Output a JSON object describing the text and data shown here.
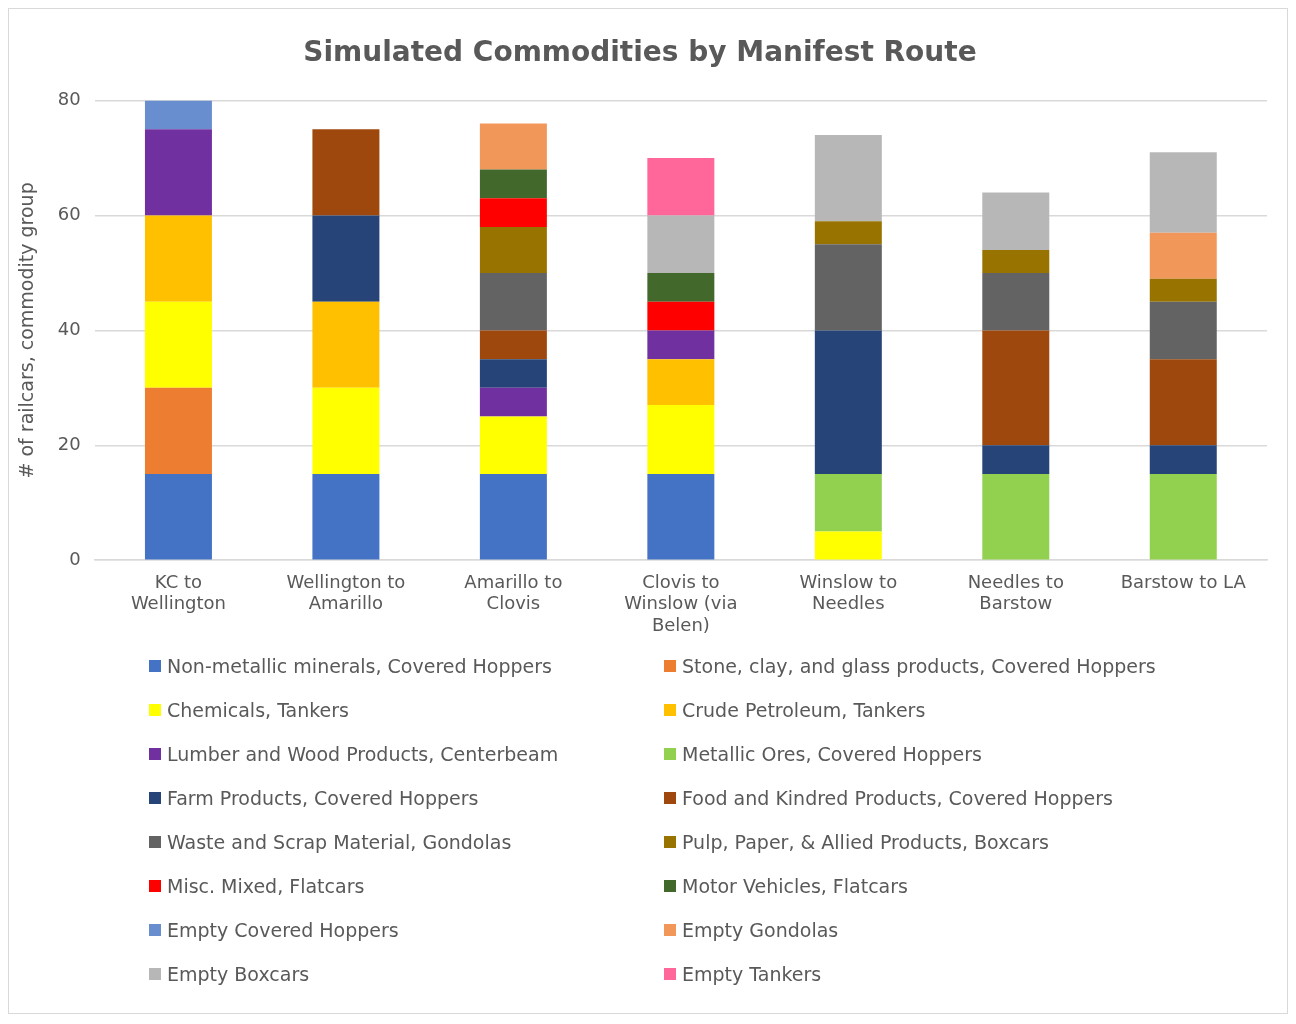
{
  "chart_data": {
    "type": "bar",
    "stacked": true,
    "title": "Simulated Commodities by Manifest Route",
    "ylabel": "# of railcars, commodity group",
    "categories": [
      "KC to Wellington",
      "Wellington to Amarillo",
      "Amarillo to Clovis",
      "Clovis to Winslow (via Belen)",
      "Winslow to Needles",
      "Needles to Barstow",
      "Barstow to LA"
    ],
    "ylim": [
      0,
      80
    ],
    "yticks": [
      0,
      20,
      40,
      60,
      80
    ],
    "grid": "y",
    "legend": "bottom",
    "series": [
      {
        "name": "Non-metallic minerals, Covered Hoppers",
        "color": "#4472c4",
        "values": [
          15,
          15,
          15,
          15,
          null,
          null,
          null
        ]
      },
      {
        "name": "Stone, clay, and glass products, Covered Hoppers",
        "color": "#ed7d31",
        "values": [
          15,
          null,
          null,
          null,
          null,
          null,
          null
        ]
      },
      {
        "name": "Chemicals, Tankers",
        "color": "#ffff00",
        "values": [
          15,
          15,
          10,
          12,
          5,
          null,
          null
        ]
      },
      {
        "name": "Crude Petroleum, Tankers",
        "color": "#ffc000",
        "values": [
          15,
          15,
          null,
          8,
          null,
          null,
          null
        ]
      },
      {
        "name": "Lumber and Wood Products, Centerbeam",
        "color": "#7030a0",
        "values": [
          15,
          null,
          5,
          5,
          null,
          null,
          null
        ]
      },
      {
        "name": "Metallic Ores, Covered Hoppers",
        "color": "#92d050",
        "values": [
          null,
          null,
          null,
          null,
          10,
          15,
          15
        ]
      },
      {
        "name": "Farm Products, Covered Hoppers",
        "color": "#264478",
        "values": [
          null,
          15,
          5,
          null,
          25,
          5,
          5
        ]
      },
      {
        "name": "Food and Kindred Products, Covered Hoppers",
        "color": "#9e480e",
        "values": [
          null,
          15,
          5,
          null,
          null,
          20,
          15
        ]
      },
      {
        "name": "Waste and Scrap Material, Gondolas",
        "color": "#636363",
        "values": [
          null,
          null,
          10,
          null,
          15,
          10,
          10
        ]
      },
      {
        "name": "Pulp, Paper, & Allied Products, Boxcars",
        "color": "#997300",
        "values": [
          null,
          null,
          8,
          null,
          4,
          4,
          4
        ]
      },
      {
        "name": "Misc. Mixed, Flatcars",
        "color": "#ff0000",
        "values": [
          null,
          null,
          5,
          5,
          null,
          null,
          null
        ]
      },
      {
        "name": "Motor Vehicles, Flatcars",
        "color": "#43682b",
        "values": [
          null,
          null,
          5,
          5,
          null,
          null,
          null
        ]
      },
      {
        "name": "Empty Covered Hoppers",
        "color": "#698ed0",
        "values": [
          5,
          null,
          null,
          null,
          null,
          null,
          null
        ]
      },
      {
        "name": "Empty Gondolas",
        "color": "#f1975a",
        "values": [
          null,
          null,
          8,
          null,
          null,
          null,
          8
        ]
      },
      {
        "name": "Empty Boxcars",
        "color": "#b7b7b7",
        "values": [
          null,
          null,
          null,
          10,
          15,
          10,
          14
        ]
      },
      {
        "name": "Empty Tankers",
        "color": "#ff6699",
        "values": [
          null,
          null,
          null,
          10,
          null,
          null,
          null
        ]
      }
    ]
  }
}
